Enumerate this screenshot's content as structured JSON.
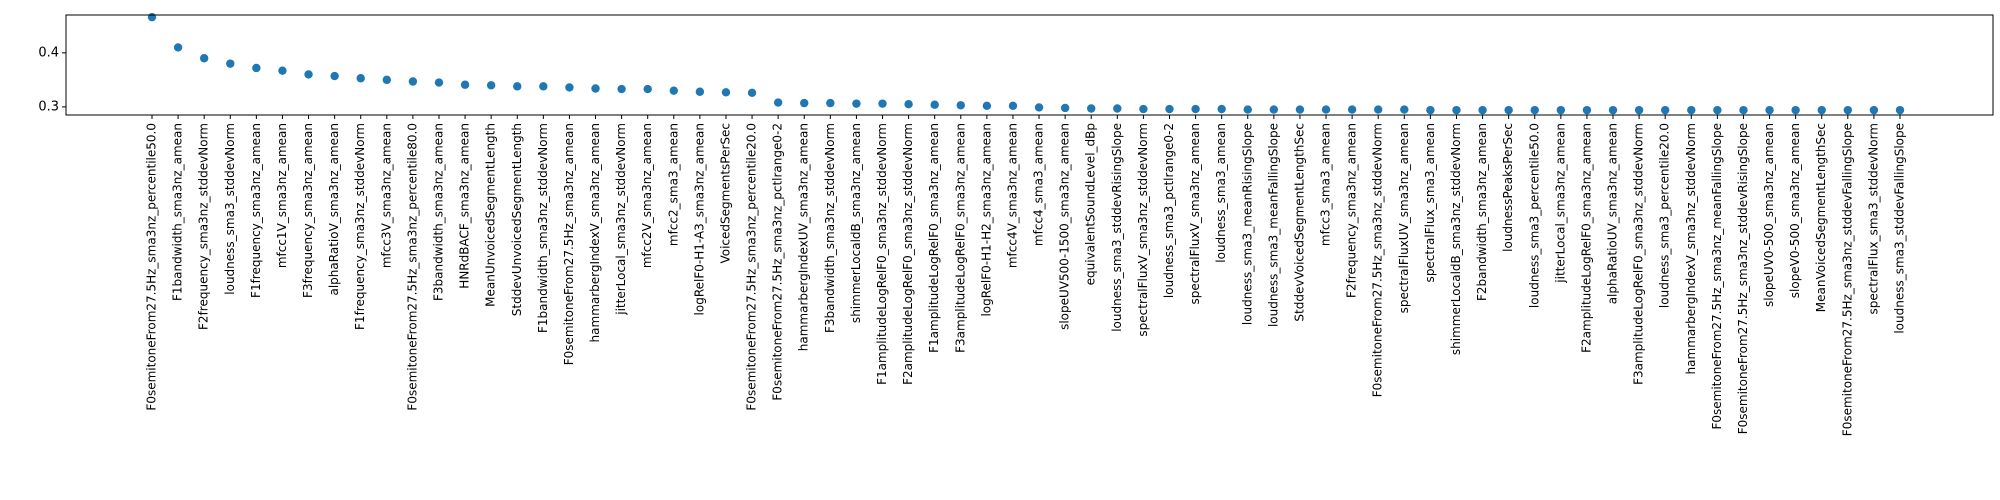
{
  "chart_data": {
    "type": "scatter",
    "title": "",
    "xlabel": "",
    "ylabel": "",
    "ylim": [
      0.285,
      0.47
    ],
    "yticks": [
      0.3,
      0.4
    ],
    "ytick_labels": [
      "0.3",
      "0.4"
    ],
    "grid": false,
    "marker_color": "#1f77b4",
    "categories": [
      "F0semitoneFrom27.5Hz_sma3nz_percentile50.0",
      "F1bandwidth_sma3nz_amean",
      "F2frequency_sma3nz_stddevNorm",
      "loudness_sma3_stddevNorm",
      "F1frequency_sma3nz_amean",
      "mfcc1V_sma3nz_amean",
      "F3frequency_sma3nz_amean",
      "alphaRatioV_sma3nz_amean",
      "F1frequency_sma3nz_stddevNorm",
      "mfcc3V_sma3nz_amean",
      "F0semitoneFrom27.5Hz_sma3nz_percentile80.0",
      "F3bandwidth_sma3nz_amean",
      "HNRdBACF_sma3nz_amean",
      "MeanUnvoicedSegmentLength",
      "StddevUnvoicedSegmentLength",
      "F1bandwidth_sma3nz_stddevNorm",
      "F0semitoneFrom27.5Hz_sma3nz_amean",
      "hammarbergIndexV_sma3nz_amean",
      "jitterLocal_sma3nz_stddevNorm",
      "mfcc2V_sma3nz_amean",
      "mfcc2_sma3_amean",
      "logRelF0-H1-A3_sma3nz_amean",
      "VoicedSegmentsPerSec",
      "F0semitoneFrom27.5Hz_sma3nz_percentile20.0",
      "F0semitoneFrom27.5Hz_sma3nz_pctlrange0-2",
      "hammarbergIndexUV_sma3nz_amean",
      "F3bandwidth_sma3nz_stddevNorm",
      "shimmerLocaldB_sma3nz_amean",
      "F1amplitudeLogRelF0_sma3nz_stddevNorm",
      "F2amplitudeLogRelF0_sma3nz_stddevNorm",
      "F1amplitudeLogRelF0_sma3nz_amean",
      "F3amplitudeLogRelF0_sma3nz_amean",
      "logRelF0-H1-H2_sma3nz_amean",
      "mfcc4V_sma3nz_amean",
      "mfcc4_sma3_amean",
      "slopeUV500-1500_sma3nz_amean",
      "equivalentSoundLevel_dBp",
      "loudness_sma3_stddevRisingSlope",
      "spectralFluxV_sma3nz_stddevNorm",
      "loudness_sma3_pctlrange0-2",
      "spectralFluxV_sma3nz_amean",
      "loudness_sma3_amean",
      "loudness_sma3_meanRisingSlope",
      "loudness_sma3_meanFallingSlope",
      "StddevVoicedSegmentLengthSec",
      "mfcc3_sma3_amean",
      "F2frequency_sma3nz_amean",
      "F0semitoneFrom27.5Hz_sma3nz_stddevNorm",
      "spectralFluxUV_sma3nz_amean",
      "spectralFlux_sma3_amean",
      "shimmerLocaldB_sma3nz_stddevNorm",
      "F2bandwidth_sma3nz_amean",
      "loudnessPeaksPerSec",
      "loudness_sma3_percentile50.0",
      "jitterLocal_sma3nz_amean",
      "F2amplitudeLogRelF0_sma3nz_amean",
      "alphaRatioUV_sma3nz_amean",
      "F3amplitudeLogRelF0_sma3nz_stddevNorm",
      "loudness_sma3_percentile20.0",
      "hammarbergIndexV_sma3nz_stddevNorm",
      "F0semitoneFrom27.5Hz_sma3nz_meanFallingSlope",
      "F0semitoneFrom27.5Hz_sma3nz_stddevRisingSlope",
      "slopeUV0-500_sma3nz_amean",
      "slopeV0-500_sma3nz_amean",
      "MeanVoicedSegmentLengthSec",
      "F0semitoneFrom27.5Hz_sma3nz_stddevFallingSlope",
      "spectralFlux_sma3_stddevNorm",
      "loudness_sma3_stddevFallingSlope"
    ],
    "values": [
      0.466,
      0.41,
      0.39,
      0.38,
      0.372,
      0.367,
      0.36,
      0.357,
      0.353,
      0.35,
      0.347,
      0.345,
      0.341,
      0.34,
      0.338,
      0.338,
      0.336,
      0.334,
      0.333,
      0.333,
      0.33,
      0.328,
      0.327,
      0.326,
      0.308,
      0.307,
      0.307,
      0.306,
      0.306,
      0.305,
      0.304,
      0.303,
      0.302,
      0.302,
      0.299,
      0.298,
      0.297,
      0.297,
      0.296,
      0.296,
      0.296,
      0.296,
      0.295,
      0.295,
      0.295,
      0.295,
      0.295,
      0.295,
      0.295,
      0.294,
      0.294,
      0.294,
      0.294,
      0.294,
      0.294,
      0.294,
      0.294,
      0.294,
      0.294,
      0.294,
      0.294,
      0.294,
      0.294,
      0.294,
      0.294,
      0.294,
      0.294,
      0.294
    ]
  }
}
